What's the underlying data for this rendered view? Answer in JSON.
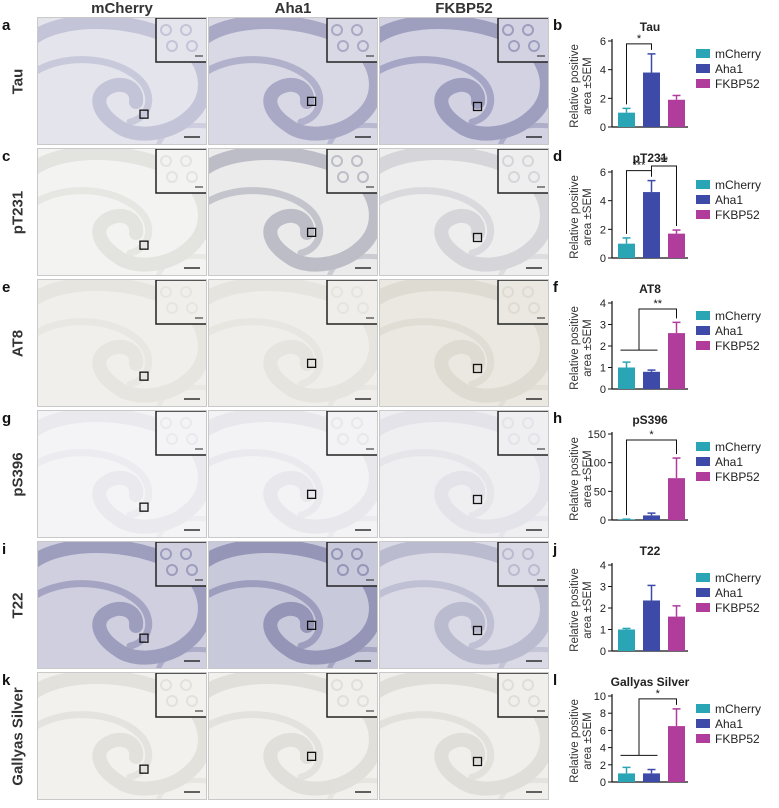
{
  "columns": [
    "mCherry",
    "Aha1",
    "FKBP52"
  ],
  "panel_colors": {
    "mCherry": "#2aa5b5",
    "Aha1": "#3d4aa8",
    "FKBP52": "#b03c9b"
  },
  "rows": [
    {
      "letter": "a",
      "chart_letter": "b",
      "label": "Tau",
      "bg": [
        "#e4e4ed",
        "#d9d9e6",
        "#d2d2e2"
      ],
      "tissue": [
        "#c4c4d8",
        "#a9a9c6",
        "#9e9ebf"
      ]
    },
    {
      "letter": "c",
      "chart_letter": "d",
      "label": "pT231",
      "bg": [
        "#f3f3f1",
        "#ebebeb",
        "#eeeeee"
      ],
      "tissue": [
        "#e3e3e0",
        "#bdbdc8",
        "#d6d6da"
      ]
    },
    {
      "letter": "e",
      "chart_letter": "f",
      "label": "AT8",
      "bg": [
        "#f0efec",
        "#efeeea",
        "#eae8e1"
      ],
      "tissue": [
        "#e7e5df",
        "#e6e4de",
        "#dedbd2"
      ]
    },
    {
      "letter": "g",
      "chart_letter": "h",
      "label": "pS396",
      "bg": [
        "#f4f4f6",
        "#f3f3f5",
        "#efeff2"
      ],
      "tissue": [
        "#e9e9ee",
        "#e7e7ec",
        "#e3e3e9"
      ]
    },
    {
      "letter": "i",
      "chart_letter": "j",
      "label": "T22",
      "bg": [
        "#cfcfe0",
        "#c9c9dc",
        "#dadae6"
      ],
      "tissue": [
        "#9d9dbd",
        "#9595b7",
        "#bbbbd0"
      ]
    },
    {
      "letter": "k",
      "chart_letter": "l",
      "label": "Gallyas Silver",
      "bg": [
        "#f2f1ee",
        "#f1f0ed",
        "#f0efec"
      ],
      "tissue": [
        "#e3e1dc",
        "#e1dfda",
        "#e0ded8"
      ]
    }
  ],
  "chart_data": [
    {
      "type": "bar",
      "title": "Tau",
      "ylabel": "Relative positive area ±SEM",
      "ylim": [
        0,
        6
      ],
      "yticks": [
        0,
        2,
        4,
        6
      ],
      "categories": [
        "mCherry",
        "Aha1",
        "FKBP52"
      ],
      "values": [
        1.0,
        3.8,
        1.9
      ],
      "errors": [
        0.3,
        1.3,
        0.3
      ],
      "legend": [
        "mCherry",
        "Aha1",
        "FKBP52"
      ],
      "significance": [
        {
          "from": 0,
          "to": 1,
          "label": "*"
        }
      ]
    },
    {
      "type": "bar",
      "title": "pT231",
      "ylabel": "Relative positive area ±SEM",
      "ylim": [
        0,
        6
      ],
      "yticks": [
        0,
        2,
        4,
        6
      ],
      "categories": [
        "mCherry",
        "Aha1",
        "FKBP52"
      ],
      "values": [
        1.0,
        4.6,
        1.7
      ],
      "errors": [
        0.4,
        0.8,
        0.25
      ],
      "legend": [
        "mCherry",
        "Aha1",
        "FKBP52"
      ],
      "significance": [
        {
          "from": 0,
          "to": 1,
          "label": "***"
        },
        {
          "from": 1,
          "to": 2,
          "label": "**"
        }
      ]
    },
    {
      "type": "bar",
      "title": "AT8",
      "ylabel": "Relative positive area ±SEM",
      "ylim": [
        0,
        4
      ],
      "yticks": [
        0,
        1,
        2,
        3,
        4
      ],
      "categories": [
        "mCherry",
        "Aha1",
        "FKBP52"
      ],
      "values": [
        1.0,
        0.8,
        2.6
      ],
      "errors": [
        0.25,
        0.08,
        0.5
      ],
      "legend": [
        "mCherry",
        "Aha1",
        "FKBP52"
      ],
      "significance": [
        {
          "from": "0-1",
          "to": 2,
          "label": "**"
        }
      ]
    },
    {
      "type": "bar",
      "title": "pS396",
      "ylabel": "Relative positive area ±SEM",
      "ylim": [
        0,
        150
      ],
      "yticks": [
        0,
        50,
        100,
        150
      ],
      "categories": [
        "mCherry",
        "Aha1",
        "FKBP52"
      ],
      "values": [
        1,
        8,
        73
      ],
      "errors": [
        0.5,
        4,
        35
      ],
      "legend": [
        "mCherry",
        "Aha1",
        "FKBP52"
      ],
      "significance": [
        {
          "from": 0,
          "to": 2,
          "label": "*"
        }
      ]
    },
    {
      "type": "bar",
      "title": "T22",
      "ylabel": "Relative positive area ±SEM",
      "ylim": [
        0,
        4
      ],
      "yticks": [
        0,
        1,
        2,
        3,
        4
      ],
      "categories": [
        "mCherry",
        "Aha1",
        "FKBP52"
      ],
      "values": [
        1.0,
        2.35,
        1.6
      ],
      "errors": [
        0.05,
        0.7,
        0.5
      ],
      "legend": [
        "mCherry",
        "Aha1",
        "FKBP52"
      ],
      "significance": []
    },
    {
      "type": "bar",
      "title": "Gallyas Silver",
      "ylabel": "Relative positive area ±SEM",
      "ylim": [
        0,
        10
      ],
      "yticks": [
        0,
        2,
        4,
        6,
        8,
        10
      ],
      "categories": [
        "mCherry",
        "Aha1",
        "FKBP52"
      ],
      "values": [
        1.0,
        1.0,
        6.5
      ],
      "errors": [
        0.7,
        0.45,
        2.0
      ],
      "legend": [
        "mCherry",
        "Aha1",
        "FKBP52"
      ],
      "significance": [
        {
          "from": "0-1",
          "to": 2,
          "label": "*"
        }
      ]
    }
  ]
}
